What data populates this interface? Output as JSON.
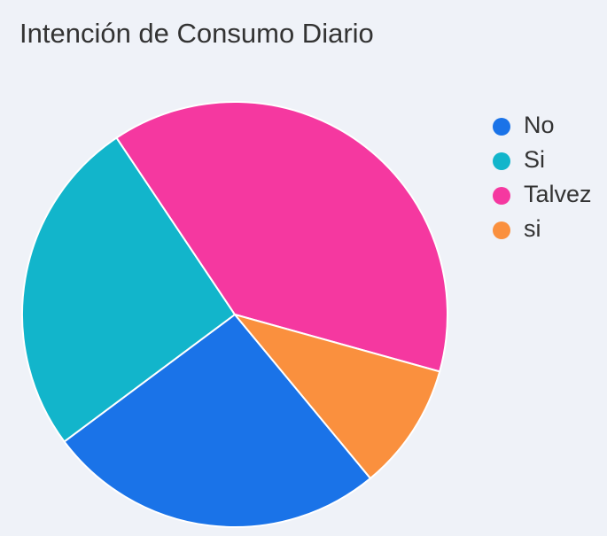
{
  "chart_data": {
    "type": "pie",
    "title": "Intención de Consumo Diario",
    "categories": [
      "No",
      "Si",
      "Talvez",
      "si"
    ],
    "values": [
      8,
      8,
      12,
      3
    ],
    "colors": [
      "#1a73e8",
      "#12b5cb",
      "#f538a0",
      "#fa903e"
    ],
    "legend": "right"
  }
}
